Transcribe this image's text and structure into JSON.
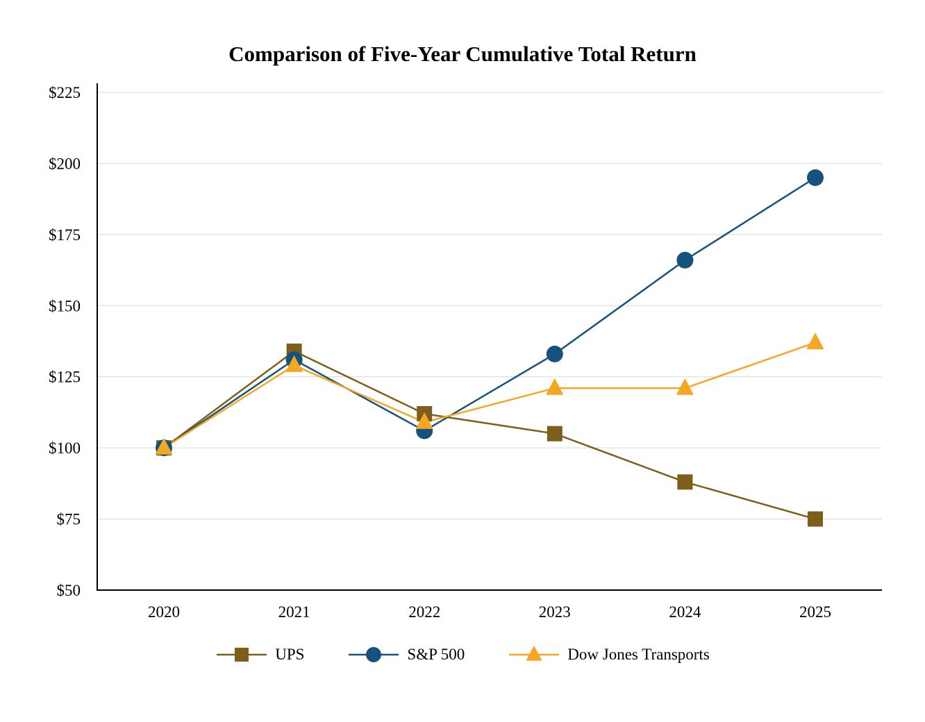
{
  "chart_data": {
    "type": "line",
    "title": "Comparison of Five-Year Cumulative Total Return",
    "categories": [
      "2020",
      "2021",
      "2022",
      "2023",
      "2024",
      "2025"
    ],
    "series": [
      {
        "name": "UPS",
        "marker": "square",
        "color": "#7d5f1b",
        "values": [
          100,
          134,
          112,
          105,
          88,
          75
        ]
      },
      {
        "name": "S&P 500",
        "marker": "circle",
        "color": "#15537e",
        "values": [
          100,
          131,
          106,
          133,
          166,
          195
        ]
      },
      {
        "name": "Dow Jones Transports",
        "marker": "triangle",
        "color": "#f5a623",
        "values": [
          100,
          129,
          109,
          121,
          121,
          137
        ]
      }
    ],
    "ylim": [
      50,
      225
    ],
    "ytick_step": 25,
    "ytick_prefix": "$",
    "ytick_labels": [
      "$50",
      "$75",
      "$100",
      "$125",
      "$150",
      "$175",
      "$200",
      "$225"
    ],
    "grid": "horizontal",
    "gridline_color": "#d9d9d9",
    "axis_color": "#000000",
    "legend_position": "bottom"
  }
}
